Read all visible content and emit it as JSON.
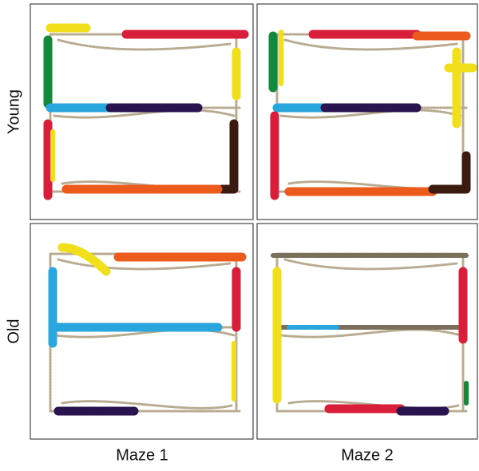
{
  "figure": {
    "row_labels": [
      "Young",
      "Old"
    ],
    "column_labels": [
      "Maze 1",
      "Maze 2"
    ]
  }
}
